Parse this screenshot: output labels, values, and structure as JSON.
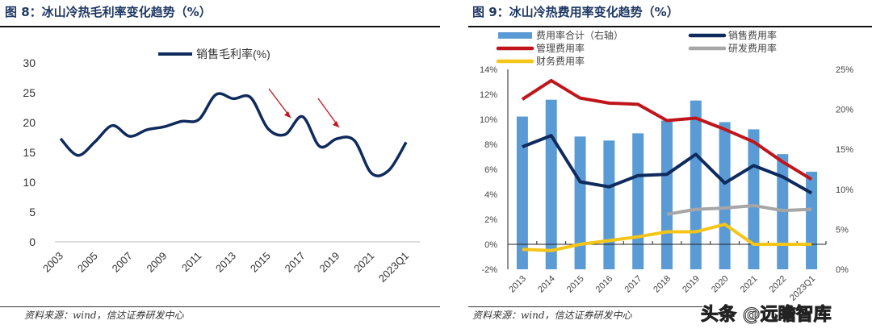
{
  "left": {
    "title": "图 8：冰山冷热毛利率变化趋势（%）",
    "source": "资料来源：wind，信达证券研发中心"
  },
  "right": {
    "title": "图 9：冰山冷热费用率变化趋势（%）",
    "source": "资料来源：wind，信达证券研发中心"
  },
  "watermark": "头条 @远瞻智库",
  "chart_data": [
    {
      "type": "line",
      "title": "图 8：冰山冷热毛利率变化趋势（%）",
      "ylim": [
        0,
        30
      ],
      "yticks": [
        0,
        5,
        10,
        15,
        20,
        25,
        30
      ],
      "categories": [
        "2003",
        "2004",
        "2005",
        "2006",
        "2007",
        "2008",
        "2009",
        "2010",
        "2011",
        "2012",
        "2013",
        "2014",
        "2015",
        "2016",
        "2017",
        "2018",
        "2019",
        "2020",
        "2021",
        "2022",
        "2023Q1"
      ],
      "tick_labels": [
        "2003",
        "2005",
        "2007",
        "2009",
        "2011",
        "2013",
        "2015",
        "2017",
        "2019",
        "2021",
        "2023Q1"
      ],
      "series": [
        {
          "name": "销售毛利率(%)",
          "color": "#0f2a5c",
          "values": [
            17.3,
            14.5,
            16.8,
            19.5,
            17.7,
            18.8,
            19.3,
            20.2,
            20.5,
            24.7,
            24.0,
            24.2,
            19.0,
            18.0,
            21.0,
            16.0,
            17.3,
            17.0,
            11.5,
            12.0,
            16.7
          ]
        }
      ],
      "annotations": [
        "arrow-2016",
        "arrow-2019"
      ],
      "legend": "top-center",
      "grid": false
    },
    {
      "type": "bar+line",
      "title": "图 9：冰山冷热费用率变化趋势（%）",
      "categories": [
        "2013",
        "2014",
        "2015",
        "2016",
        "2017",
        "2018",
        "2019",
        "2020",
        "2021",
        "2022",
        "2023Q1"
      ],
      "ylim_left": [
        -2,
        14
      ],
      "yticks_left": [
        "-2%",
        "0%",
        "2%",
        "4%",
        "6%",
        "8%",
        "10%",
        "12%",
        "14%"
      ],
      "ylim_right": [
        0,
        25
      ],
      "yticks_right": [
        "0%",
        "5%",
        "10%",
        "15%",
        "20%",
        "25%"
      ],
      "bars": {
        "name": "费用率合计（右轴）",
        "color": "#5b9bd5",
        "values": [
          19.1,
          21.2,
          16.6,
          16.1,
          17.0,
          18.6,
          21.1,
          18.4,
          17.5,
          14.4,
          12.2
        ]
      },
      "series": [
        {
          "name": "销售费用率",
          "color": "#0f2a5c",
          "values": [
            7.8,
            8.7,
            5.0,
            4.6,
            5.5,
            5.6,
            7.2,
            4.9,
            6.3,
            5.4,
            4.1
          ]
        },
        {
          "name": "管理费用率",
          "color": "#c0161b",
          "values": [
            11.6,
            13.1,
            11.7,
            11.3,
            11.2,
            9.9,
            10.1,
            9.2,
            8.2,
            6.6,
            5.2
          ]
        },
        {
          "name": "研发费用率",
          "color": "#a6a6a6",
          "values": [
            null,
            null,
            null,
            null,
            null,
            2.4,
            2.8,
            2.9,
            3.1,
            2.7,
            2.8
          ]
        },
        {
          "name": "财务费用率",
          "color": "#f5c518",
          "values": [
            -0.4,
            -0.5,
            0.0,
            0.3,
            0.6,
            1.0,
            1.0,
            1.6,
            0.0,
            0.0,
            0.0
          ]
        }
      ],
      "legend": "top",
      "grid": false
    }
  ]
}
